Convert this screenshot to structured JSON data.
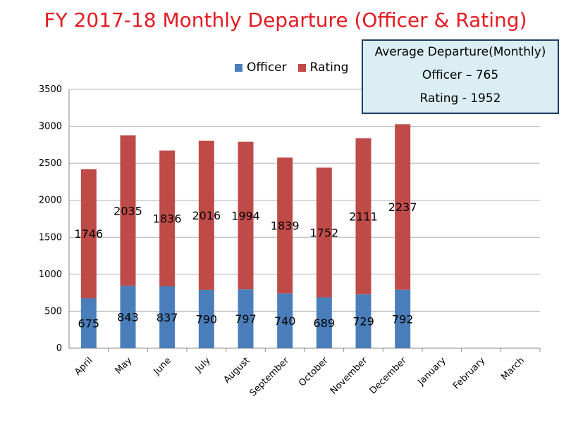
{
  "colors": {
    "officer": "#4a7ebb",
    "rating": "#be4b48",
    "title": "#e31b23",
    "grid": "#b0b0b0"
  },
  "chart_data": {
    "type": "bar",
    "stacked": true,
    "title": "FY 2017-18 Monthly Departure (Officer & Rating)",
    "categories": [
      "April",
      "May",
      "June",
      "July",
      "August",
      "September",
      "October",
      "November",
      "December",
      "January",
      "February",
      "March"
    ],
    "series": [
      {
        "name": "Officer",
        "values": [
          675,
          843,
          837,
          790,
          797,
          740,
          689,
          729,
          792,
          null,
          null,
          null
        ]
      },
      {
        "name": "Rating",
        "values": [
          1746,
          2035,
          1836,
          2016,
          1994,
          1839,
          1752,
          2111,
          2237,
          null,
          null,
          null
        ]
      }
    ],
    "ylim": [
      0,
      3500
    ],
    "yticks": [
      "0",
      "500",
      "1000",
      "1500",
      "2000",
      "2500",
      "3000",
      "3500"
    ],
    "grid": true,
    "legend": "top-center"
  },
  "info_box": {
    "heading": "Average Departure(Monthly)",
    "officer_line": "Officer – 765",
    "rating_line": "Rating - 1952"
  }
}
